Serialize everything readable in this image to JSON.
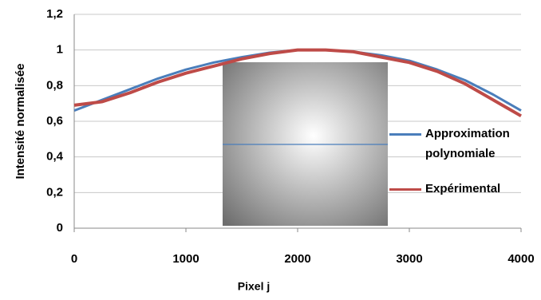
{
  "chart_data": {
    "type": "line",
    "x_label": "Pixel j",
    "y_label": "Intensité normalisée",
    "x": [
      0,
      250,
      500,
      750,
      1000,
      1250,
      1500,
      1750,
      2000,
      2250,
      2500,
      2750,
      3000,
      3250,
      3500,
      3750,
      4000
    ],
    "series": [
      {
        "name": "Approximation polynomiale",
        "color": "#4a7ebb",
        "values": [
          0.66,
          0.72,
          0.78,
          0.84,
          0.89,
          0.93,
          0.96,
          0.985,
          1.0,
          1.0,
          0.99,
          0.97,
          0.94,
          0.89,
          0.83,
          0.75,
          0.66
        ]
      },
      {
        "name": "Expérimental",
        "color": "#be4b48",
        "values": [
          0.69,
          0.71,
          0.76,
          0.82,
          0.87,
          0.91,
          0.95,
          0.98,
          1.0,
          1.0,
          0.99,
          0.96,
          0.93,
          0.88,
          0.81,
          0.72,
          0.63
        ]
      }
    ],
    "xlim": [
      0,
      4000
    ],
    "xticks": [
      0,
      1000,
      2000,
      3000,
      4000
    ],
    "ylim": [
      0,
      1.2
    ],
    "yticks": [
      0,
      {
        "value": 0.2,
        "label": "0,2"
      },
      {
        "value": 0.4,
        "label": "0,4"
      },
      {
        "value": 0.6,
        "label": "0,6"
      },
      {
        "value": 0.8,
        "label": "0,8"
      },
      1,
      {
        "value": 1.2,
        "label": "1,2"
      }
    ],
    "grid": true,
    "legend": "right"
  }
}
